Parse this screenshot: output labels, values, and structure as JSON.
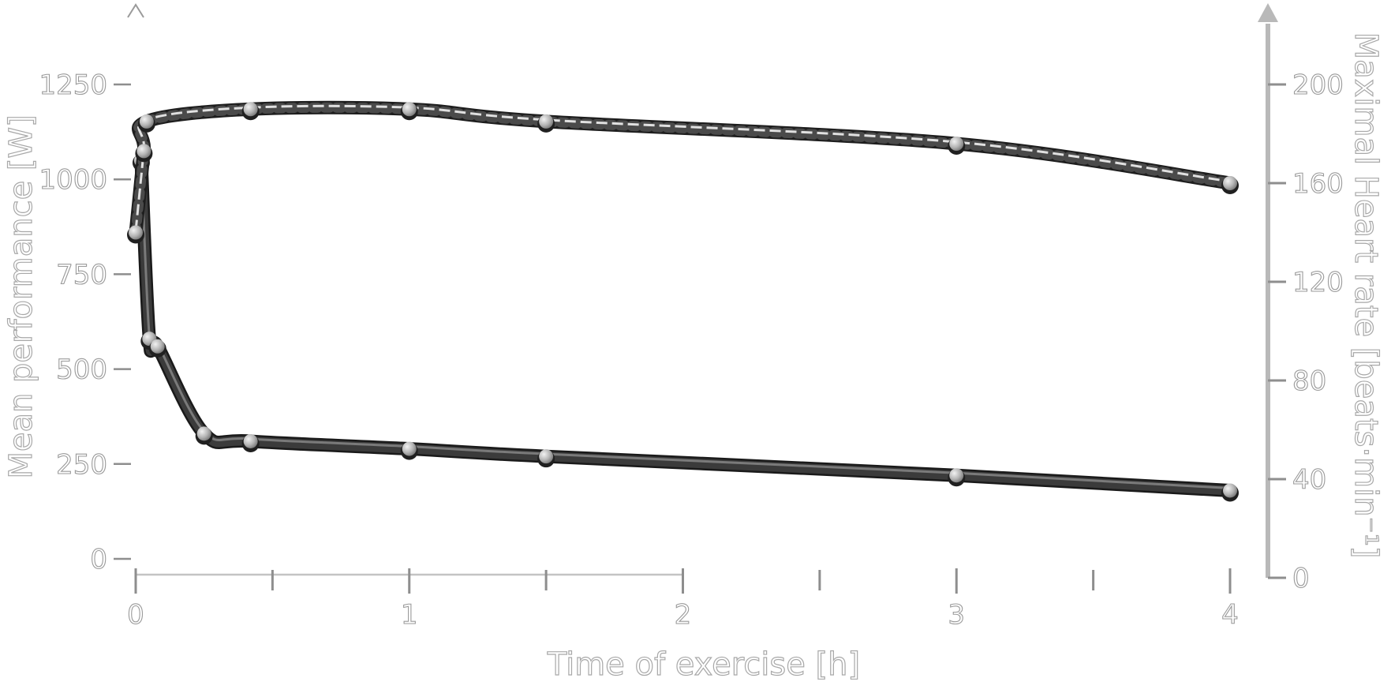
{
  "chart_data": {
    "type": "line",
    "title": "",
    "xlabel": "Time of exercise [h]",
    "ylabel_left": "Mean performance [W]",
    "ylabel_right": "Maximal Heart rate [beats·min⁻¹]",
    "xlim": [
      0,
      4
    ],
    "ylim_left": [
      0,
      1250
    ],
    "ylim_right": [
      0,
      200
    ],
    "x_ticks": [
      "0",
      "1",
      "2",
      "3",
      "4"
    ],
    "y_ticks_left": [
      "0",
      "250",
      "500",
      "750",
      "1000",
      "1250"
    ],
    "y_ticks_right": [
      "0",
      "40",
      "80",
      "120",
      "160",
      "200"
    ],
    "grid": false,
    "series": [
      {
        "axis": "left",
        "style": "solid",
        "x": [
          0.02,
          0.05,
          0.08,
          0.25,
          0.42,
          1.0,
          1.5,
          3.0,
          4.0
        ],
        "values": [
          1050,
          580,
          560,
          330,
          310,
          290,
          270,
          220,
          180
        ]
      },
      {
        "axis": "right",
        "style": "dashed",
        "x": [
          0.0,
          0.03,
          0.04,
          0.42,
          1.0,
          1.5,
          3.0,
          4.0
        ],
        "values": [
          140,
          173,
          185,
          190,
          190,
          185,
          176,
          160
        ]
      }
    ]
  }
}
